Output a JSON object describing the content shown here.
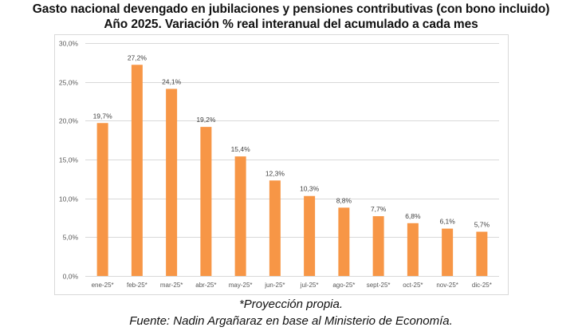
{
  "title_line1": "Gasto nacional devengado en jubilaciones y pensiones contributivas (con bono incluido)",
  "title_line2": "Año 2025. Variación % real interanual del acumulado a cada mes",
  "footnote": "*Proyección propia.",
  "source": "Fuente: Nadin Argañaraz en base al Ministerio de Economía.",
  "colors": {
    "bar": "#F79646",
    "gridline": "#D9D9D9",
    "frame": "#D9D9D9",
    "tick_text": "#595959",
    "label_text": "#404040"
  },
  "chart_data": {
    "type": "bar",
    "title": "Gasto nacional devengado en jubilaciones y pensiones contributivas (con bono incluido) Año 2025. Variación % real interanual del acumulado a cada mes",
    "xlabel": "",
    "ylabel": "",
    "categories": [
      "ene-25*",
      "feb-25*",
      "mar-25*",
      "abr-25*",
      "may-25*",
      "jun-25*",
      "jul-25*",
      "ago-25*",
      "sept-25*",
      "oct-25*",
      "nov-25*",
      "dic-25*"
    ],
    "values": [
      19.7,
      27.2,
      24.1,
      19.2,
      15.4,
      12.3,
      10.3,
      8.8,
      7.7,
      6.8,
      6.1,
      5.7
    ],
    "data_labels": [
      "19,7%",
      "27,2%",
      "24,1%",
      "19,2%",
      "15,4%",
      "12,3%",
      "10,3%",
      "8,8%",
      "7,7%",
      "6,8%",
      "6,1%",
      "5,7%"
    ],
    "ylim": [
      0,
      30
    ],
    "yticks": [
      0,
      5,
      10,
      15,
      20,
      25,
      30
    ],
    "ytick_labels": [
      "0,0%",
      "5,0%",
      "10,0%",
      "15,0%",
      "20,0%",
      "25,0%",
      "30,0%"
    ],
    "grid": true,
    "legend": "none"
  }
}
